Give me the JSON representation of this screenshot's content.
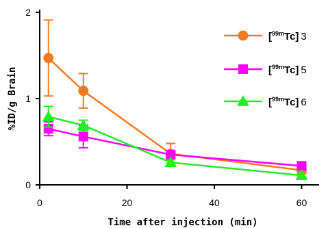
{
  "chart_data": {
    "type": "line",
    "xlabel": "Time after injection (min)",
    "ylabel": "%ID/g Brain",
    "xlim": [
      0,
      64
    ],
    "ylim": [
      0,
      2
    ],
    "xticks": [
      0,
      20,
      40,
      60
    ],
    "yticks": [
      0,
      1,
      2
    ],
    "legend_position": "top-right",
    "series": [
      {
        "name": "[99mTc]3",
        "isotope_bracket_open": "[",
        "isotope_sup": "99m",
        "isotope_el": "Tc",
        "isotope_bracket_close": "]",
        "compound": "3",
        "color": "#F47A20",
        "marker": "circle",
        "x": [
          2,
          10,
          30,
          60
        ],
        "y": [
          1.47,
          1.09,
          0.36,
          0.17
        ],
        "err": [
          0.44,
          0.2,
          0.12,
          0.03
        ]
      },
      {
        "name": "[99mTc]5",
        "isotope_bracket_open": "[",
        "isotope_sup": "99m",
        "isotope_el": "Tc",
        "isotope_bracket_close": "]",
        "compound": "5",
        "color": "#FF00FF",
        "marker": "square",
        "x": [
          2,
          10,
          30,
          60
        ],
        "y": [
          0.65,
          0.56,
          0.35,
          0.22
        ],
        "err": [
          0.08,
          0.13,
          0.04,
          0.02
        ]
      },
      {
        "name": "[99mTc]6",
        "isotope_bracket_open": "[",
        "isotope_sup": "99m",
        "isotope_el": "Tc",
        "isotope_bracket_close": "]",
        "compound": "6",
        "color": "#22EE22",
        "marker": "triangle",
        "x": [
          2,
          10,
          30,
          60
        ],
        "y": [
          0.79,
          0.69,
          0.26,
          0.11
        ],
        "err": [
          0.12,
          0.06,
          0.03,
          0.02
        ]
      }
    ]
  }
}
